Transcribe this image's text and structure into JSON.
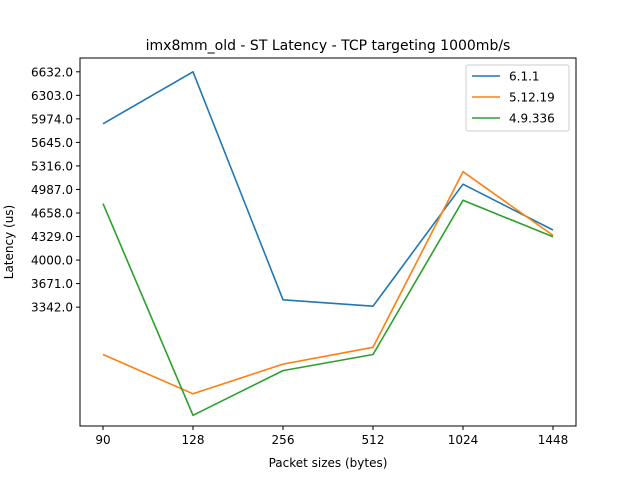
{
  "chart_data": {
    "type": "line",
    "title": "imx8mm_old - ST Latency - TCP targeting 1000mb/s",
    "xlabel": "Packet sizes (bytes)",
    "ylabel": "Latency (us)",
    "categories": [
      "90",
      "128",
      "256",
      "512",
      "1024",
      "1448"
    ],
    "y_ticks": [
      "3342.0",
      "3671.0",
      "4000.0",
      "4329.0",
      "4658.0",
      "4987.0",
      "5316.0",
      "5645.0",
      "5974.0",
      "6303.0",
      "6632.0"
    ],
    "ylim": [
      1680,
      6825
    ],
    "grid": false,
    "legend_position": "top-right",
    "series": [
      {
        "name": "6.1.1",
        "color": "#1f77b4",
        "values": [
          5905,
          6632,
          3445,
          3355,
          5060,
          4420
        ]
      },
      {
        "name": "5.12.19",
        "color": "#ff7f0e",
        "values": [
          2680,
          2130,
          2545,
          2780,
          5235,
          4345
        ]
      },
      {
        "name": "4.9.336",
        "color": "#2ca02c",
        "values": [
          4790,
          1830,
          2455,
          2680,
          4835,
          4325
        ]
      }
    ]
  }
}
